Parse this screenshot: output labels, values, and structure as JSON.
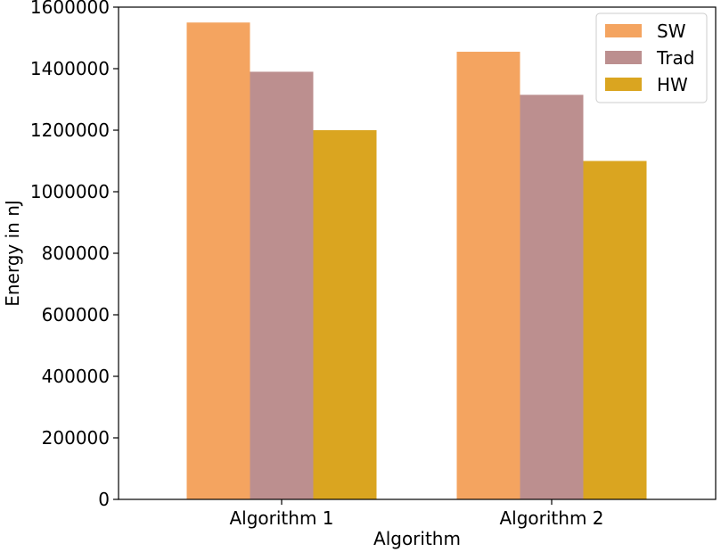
{
  "chart_data": {
    "type": "bar",
    "categories": [
      "Algorithm 1",
      "Algorithm 2"
    ],
    "series": [
      {
        "name": "SW",
        "values": [
          1550000,
          1455000
        ],
        "color": "#f4a460"
      },
      {
        "name": "Trad",
        "values": [
          1390000,
          1315000
        ],
        "color": "#bc8f8f"
      },
      {
        "name": "HW",
        "values": [
          1200000,
          1100000
        ],
        "color": "#daa520"
      }
    ],
    "title": "",
    "xlabel": "Algorithm",
    "ylabel": "Energy in nJ",
    "ylim": [
      0,
      1600000
    ],
    "yticks": [
      0,
      200000,
      400000,
      600000,
      800000,
      1000000,
      1200000,
      1400000,
      1600000
    ],
    "grid": false,
    "legend_position": "top-right"
  }
}
